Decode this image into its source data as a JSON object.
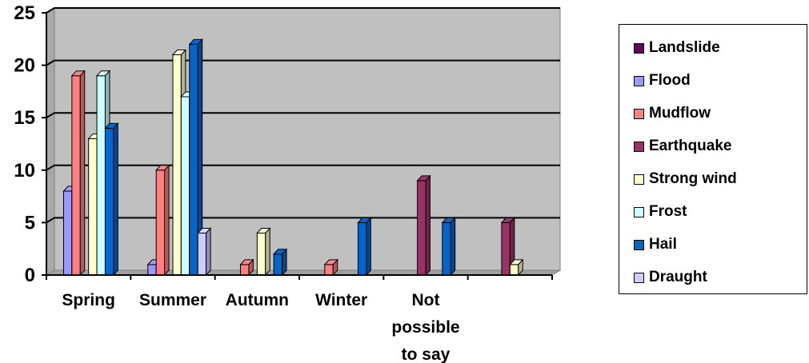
{
  "chart_data": {
    "type": "bar",
    "categories": [
      "Spring",
      "Summer",
      "Autumn",
      "Winter",
      "Not possible to say",
      ""
    ],
    "category_label_lines": [
      [
        "Spring"
      ],
      [
        "Summer"
      ],
      [
        "Autumn"
      ],
      [
        "Winter"
      ],
      [
        "Not",
        "possible",
        "to say"
      ],
      [
        ""
      ]
    ],
    "ylim": [
      0,
      25
    ],
    "yticks": [
      0,
      5,
      10,
      15,
      20,
      25
    ],
    "grid": true,
    "legend_position": "right",
    "series": [
      {
        "name": "Landslide",
        "color": "#660066",
        "values": [
          0,
          0,
          0,
          0,
          0,
          0
        ]
      },
      {
        "name": "Flood",
        "color": "#9999FF",
        "values": [
          8,
          1,
          0,
          0,
          0,
          0
        ]
      },
      {
        "name": "Mudflow",
        "color": "#FF8080",
        "values": [
          19,
          10,
          1,
          1,
          0,
          0
        ]
      },
      {
        "name": "Earthquake",
        "color": "#993366",
        "values": [
          0,
          0,
          0,
          0,
          9,
          5
        ]
      },
      {
        "name": "Strong wind",
        "color": "#FFFFCC",
        "values": [
          13,
          21,
          4,
          0,
          0,
          1
        ]
      },
      {
        "name": "Frost",
        "color": "#CCFFFF",
        "values": [
          19,
          17,
          0,
          0,
          0,
          0
        ]
      },
      {
        "name": "Hail",
        "color": "#0066CC",
        "values": [
          14,
          22,
          2,
          5,
          5,
          0
        ]
      },
      {
        "name": "Draught",
        "color": "#CCCCFF",
        "values": [
          0,
          4,
          0,
          0,
          0,
          0
        ]
      }
    ]
  }
}
